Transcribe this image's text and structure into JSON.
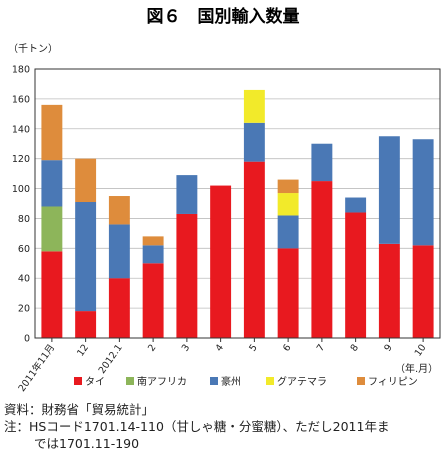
{
  "chart_data": {
    "type": "bar",
    "stacked": true,
    "title": "図６　国別輸入数量",
    "ylabel": "（千トン）",
    "xlabel": "（年.月）",
    "ylim": [
      0,
      180
    ],
    "yticks": [
      0,
      20,
      40,
      60,
      80,
      100,
      120,
      140,
      160,
      180
    ],
    "grid": true,
    "legend_position": "bottom",
    "categories": [
      "2011年11月",
      "12",
      "2012.1",
      "2",
      "3",
      "4",
      "5",
      "6",
      "7",
      "8",
      "9",
      "10"
    ],
    "series": [
      {
        "name": "タイ",
        "color": "#e8191f",
        "values": [
          58,
          18,
          40,
          50,
          83,
          102,
          118,
          60,
          105,
          84,
          63,
          62
        ]
      },
      {
        "name": "南アフリカ",
        "color": "#8db55a",
        "values": [
          30,
          0,
          0,
          0,
          0,
          0,
          0,
          0,
          0,
          0,
          0,
          0
        ]
      },
      {
        "name": "豪州",
        "color": "#4a78b5",
        "values": [
          31,
          73,
          36,
          12,
          26,
          0,
          26,
          22,
          25,
          10,
          72,
          71
        ]
      },
      {
        "name": "グアテマラ",
        "color": "#f2ea2a",
        "values": [
          0,
          0,
          0,
          0,
          0,
          0,
          22,
          15,
          0,
          0,
          0,
          0
        ]
      },
      {
        "name": "フィリピン",
        "color": "#de8c3c",
        "values": [
          37,
          29,
          19,
          6,
          0,
          0,
          0,
          9,
          0,
          0,
          0,
          0
        ]
      }
    ]
  },
  "notes": {
    "source": "資料：財務省「貿易統計」",
    "note_line1": "注：HSコード1701.14-110（甘しゃ糖・分蜜糖）、ただし2011年ま",
    "note_line2": "では1701.11-190"
  }
}
